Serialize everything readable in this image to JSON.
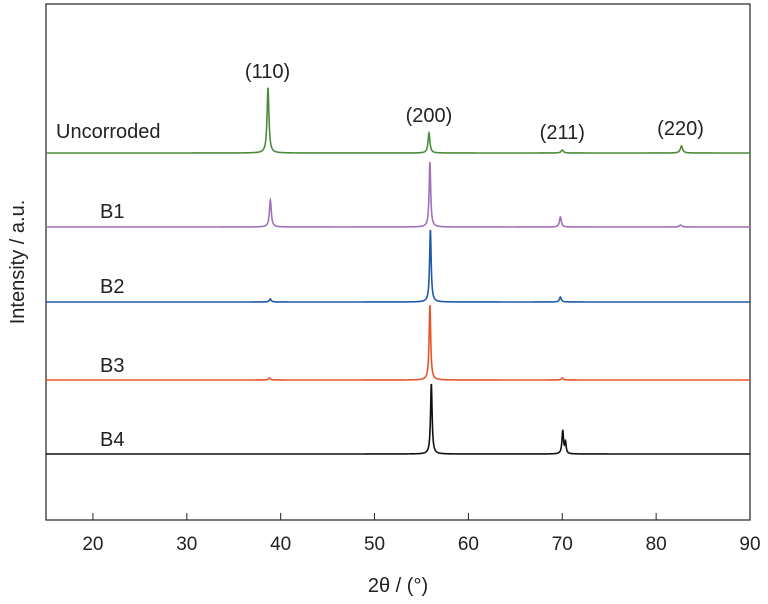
{
  "chart_data": {
    "type": "line",
    "xlabel": "2θ / (°)",
    "ylabel": "Intensity / a.u.",
    "xlim": [
      15,
      90
    ],
    "xticks": [
      20,
      30,
      40,
      50,
      60,
      70,
      80,
      90
    ],
    "grid": false,
    "peak_labels": [
      {
        "text": "(110)",
        "x": 38.6
      },
      {
        "text": "(200)",
        "x": 55.8
      },
      {
        "text": "(211)",
        "x": 70.0
      },
      {
        "text": "(220)",
        "x": 82.6
      }
    ],
    "series": [
      {
        "name": "Uncorroded",
        "color": "#4c8a3c",
        "peaks": [
          {
            "x": 38.65,
            "height": 65,
            "width": 0.12
          },
          {
            "x": 55.8,
            "height": 20,
            "width": 0.12
          },
          {
            "x": 70.0,
            "height": 3,
            "width": 0.15
          },
          {
            "x": 82.7,
            "height": 7,
            "width": 0.15
          }
        ]
      },
      {
        "name": "B1",
        "color": "#a070b8",
        "peaks": [
          {
            "x": 38.9,
            "height": 27,
            "width": 0.12
          },
          {
            "x": 55.9,
            "height": 65,
            "width": 0.1
          },
          {
            "x": 69.8,
            "height": 10,
            "width": 0.12
          },
          {
            "x": 82.6,
            "height": 2,
            "width": 0.15
          }
        ]
      },
      {
        "name": "B2",
        "color": "#1f5aa8",
        "peaks": [
          {
            "x": 38.9,
            "height": 3,
            "width": 0.12
          },
          {
            "x": 55.95,
            "height": 72,
            "width": 0.1
          },
          {
            "x": 69.8,
            "height": 5,
            "width": 0.12
          }
        ]
      },
      {
        "name": "B3",
        "color": "#e8542a",
        "peaks": [
          {
            "x": 38.8,
            "height": 2,
            "width": 0.12
          },
          {
            "x": 55.9,
            "height": 75,
            "width": 0.1
          },
          {
            "x": 70.0,
            "height": 2,
            "width": 0.12
          }
        ]
      },
      {
        "name": "B4",
        "color": "#111111",
        "peaks": [
          {
            "x": 56.05,
            "height": 70,
            "width": 0.1
          },
          {
            "x": 70.05,
            "height": 23,
            "width": 0.1
          },
          {
            "x": 70.35,
            "height": 11,
            "width": 0.08
          }
        ]
      }
    ]
  }
}
